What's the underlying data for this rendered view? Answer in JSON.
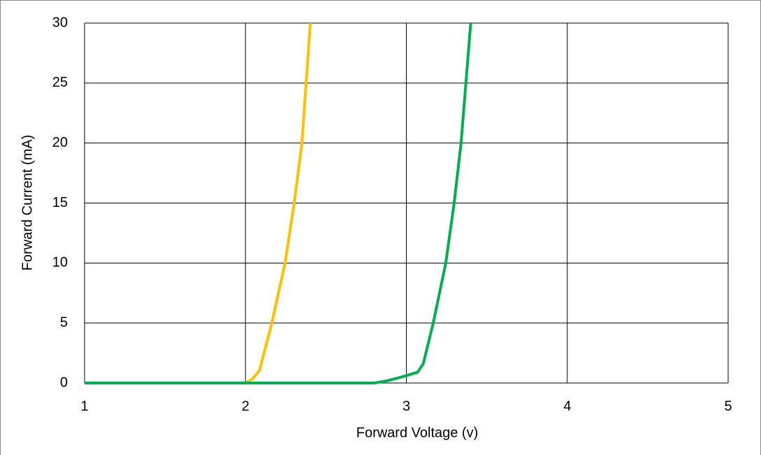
{
  "chart_data": {
    "type": "line",
    "x_label": "Forward Voltage (v)",
    "y_label": "Forward Current (mA)",
    "xlim": [
      1,
      5
    ],
    "xticks": [
      1,
      2,
      3,
      4,
      5
    ],
    "ylim": [
      0,
      30
    ],
    "yticks": [
      0,
      5,
      10,
      15,
      20,
      25,
      30
    ],
    "grid": true,
    "series": [
      {
        "color": "#ffc000",
        "x": [
          1,
          2.0,
          2.04,
          2.087,
          2.164,
          2.246,
          2.303,
          2.351,
          2.377,
          2.403
        ],
        "values": [
          0,
          0,
          0.3,
          1.05,
          5,
          10,
          15,
          20,
          25,
          30
        ]
      },
      {
        "color": "#00b050",
        "x": [
          1,
          2.8,
          2.885,
          2.97,
          3.07,
          3.105,
          3.167,
          3.245,
          3.297,
          3.34,
          3.37,
          3.4
        ],
        "values": [
          0,
          0,
          0.2,
          0.5,
          0.9,
          1.6,
          5,
          10,
          15,
          20,
          25,
          30
        ]
      }
    ]
  }
}
